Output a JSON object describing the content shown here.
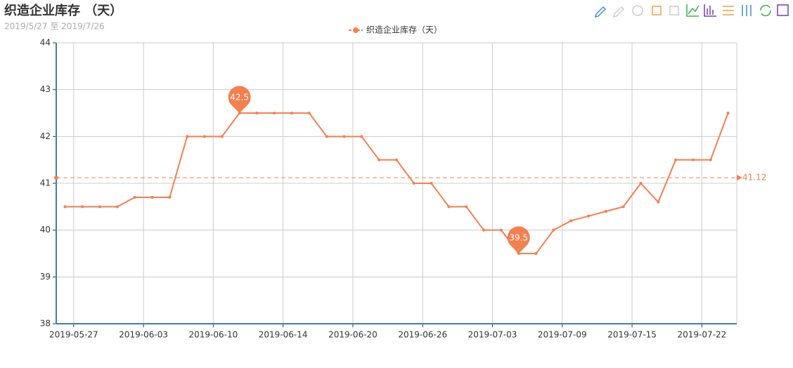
{
  "chart_data": {
    "type": "line",
    "title": "织造企业库存 （天）",
    "subtitle": "2019/5/27 至 2019/7/26",
    "categories": [
      "2019-05-27",
      null,
      null,
      null,
      "2019-06-03",
      null,
      null,
      null,
      "2019-06-10",
      null,
      null,
      null,
      "2019-06-14",
      null,
      null,
      null,
      "2019-06-20",
      null,
      null,
      null,
      "2019-06-26",
      null,
      null,
      null,
      "2019-07-03",
      null,
      null,
      null,
      "2019-07-09",
      null,
      null,
      null,
      "2019-07-15",
      null,
      null,
      null,
      "2019-07-22",
      null,
      null
    ],
    "series": [
      {
        "name": "织造企业库存（天）",
        "color": "#f47f4f",
        "values": [
          40.5,
          40.5,
          40.5,
          40.5,
          40.7,
          40.7,
          40.7,
          42,
          42,
          42,
          42.5,
          42.5,
          42.5,
          42.5,
          42.5,
          42,
          42,
          42,
          41.5,
          41.5,
          41,
          41,
          40.5,
          40.5,
          40,
          40,
          39.5,
          39.5,
          40,
          40.2,
          40.3,
          40.4,
          40.5,
          41,
          40.6,
          41.5,
          41.5,
          41.5,
          42.5
        ],
        "max": 42.5,
        "min": 39.5,
        "average": 41.12
      }
    ],
    "ylim": [
      38,
      44
    ],
    "yticks": [
      38,
      39,
      40,
      41,
      42,
      43,
      44
    ],
    "grid": true
  }
}
